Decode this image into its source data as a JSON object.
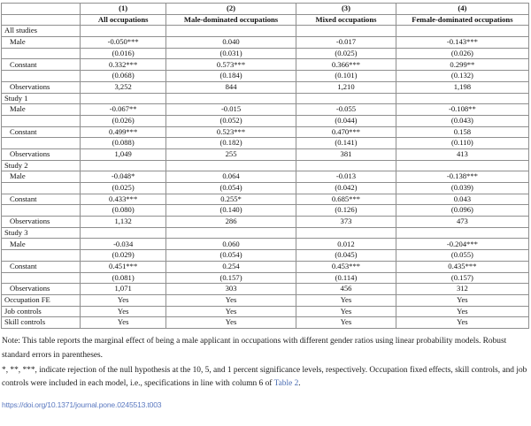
{
  "table": {
    "rows": [
      {
        "type": "header",
        "cells": [
          "",
          "(1)",
          "(2)",
          "(3)",
          "(4)"
        ]
      },
      {
        "type": "header",
        "cells": [
          "",
          "All occupations",
          "Male-dominated occupations",
          "Mixed occupations",
          "Female-dominated occupations"
        ]
      },
      {
        "type": "section",
        "cells": [
          "All studies",
          "",
          "",
          "",
          ""
        ]
      },
      {
        "type": "indent",
        "cells": [
          "Male",
          "-0.050***",
          "0.040",
          "-0.017",
          "-0.143***"
        ]
      },
      {
        "type": "indent",
        "cells": [
          "",
          "(0.016)",
          "(0.031)",
          "(0.025)",
          "(0.026)"
        ]
      },
      {
        "type": "indent",
        "cells": [
          "Constant",
          "0.332***",
          "0.573***",
          "0.366***",
          "0.299**"
        ]
      },
      {
        "type": "indent",
        "cells": [
          "",
          "(0.068)",
          "(0.184)",
          "(0.101)",
          "(0.132)"
        ]
      },
      {
        "type": "indent",
        "cells": [
          "Observations",
          "3,252",
          "844",
          "1,210",
          "1,198"
        ]
      },
      {
        "type": "section",
        "cells": [
          "Study 1",
          "",
          "",
          "",
          ""
        ]
      },
      {
        "type": "indent",
        "cells": [
          "Male",
          "-0.067**",
          "-0.015",
          "-0.055",
          "-0.108**"
        ]
      },
      {
        "type": "indent",
        "cells": [
          "",
          "(0.026)",
          "(0.052)",
          "(0.044)",
          "(0.043)"
        ]
      },
      {
        "type": "indent",
        "cells": [
          "Constant",
          "0.499***",
          "0.523***",
          "0.470***",
          "0.158"
        ]
      },
      {
        "type": "indent",
        "cells": [
          "",
          "(0.088)",
          "(0.182)",
          "(0.141)",
          "(0.110)"
        ]
      },
      {
        "type": "indent",
        "cells": [
          "Observations",
          "1,049",
          "255",
          "381",
          "413"
        ]
      },
      {
        "type": "section",
        "cells": [
          "Study 2",
          "",
          "",
          "",
          ""
        ]
      },
      {
        "type": "indent",
        "cells": [
          "Male",
          "-0.048*",
          "0.064",
          "-0.013",
          "-0.138***"
        ]
      },
      {
        "type": "indent",
        "cells": [
          "",
          "(0.025)",
          "(0.054)",
          "(0.042)",
          "(0.039)"
        ]
      },
      {
        "type": "indent",
        "cells": [
          "Constant",
          "0.433***",
          "0.255*",
          "0.685***",
          "0.043"
        ]
      },
      {
        "type": "indent",
        "cells": [
          "",
          "(0.080)",
          "(0.140)",
          "(0.126)",
          "(0.096)"
        ]
      },
      {
        "type": "indent",
        "cells": [
          "Observations",
          "1,132",
          "286",
          "373",
          "473"
        ]
      },
      {
        "type": "section",
        "cells": [
          "Study 3",
          "",
          "",
          "",
          ""
        ]
      },
      {
        "type": "indent",
        "cells": [
          "Male",
          "-0.034",
          "0.060",
          "0.012",
          "-0.204***"
        ]
      },
      {
        "type": "indent",
        "cells": [
          "",
          "(0.029)",
          "(0.054)",
          "(0.045)",
          "(0.055)"
        ]
      },
      {
        "type": "indent",
        "cells": [
          "Constant",
          "0.451***",
          "0.254",
          "0.453***",
          "0.435***"
        ]
      },
      {
        "type": "indent",
        "cells": [
          "",
          "(0.081)",
          "(0.157)",
          "(0.114)",
          "(0.157)"
        ]
      },
      {
        "type": "indent",
        "cells": [
          "Observations",
          "1,071",
          "303",
          "456",
          "312"
        ]
      },
      {
        "type": "plain",
        "cells": [
          "Occupation FE",
          "Yes",
          "Yes",
          "Yes",
          "Yes"
        ]
      },
      {
        "type": "plain",
        "cells": [
          "Job controls",
          "Yes",
          "Yes",
          "Yes",
          "Yes"
        ]
      },
      {
        "type": "plain",
        "cells": [
          "Skill controls",
          "Yes",
          "Yes",
          "Yes",
          "Yes"
        ]
      }
    ],
    "column_widths_percent": [
      15.0,
      16.2,
      24.7,
      18.9,
      25.2
    ]
  },
  "notes": {
    "note1": "Note: This table reports the marginal effect of being a male applicant in occupations with different gender ratios using linear probability models. Robust standard errors in parentheses.",
    "note2_text": "*, **, ***, indicate rejection of the null hypothesis at the 10, 5, and 1 percent significance levels, respectively. Occupation fixed effects, skill controls, and job controls were included in each model, i.e., specifications in line with column 6 of ",
    "note2_link": "Table 2",
    "note2_suffix": "."
  },
  "footer": {
    "doi": "https://doi.org/10.1371/journal.pone.0245513.t003"
  },
  "colors": {
    "link_blue": "#4a6cb3",
    "doi_blue": "#5b79c0",
    "grid_gray": "#8f8f8f"
  }
}
